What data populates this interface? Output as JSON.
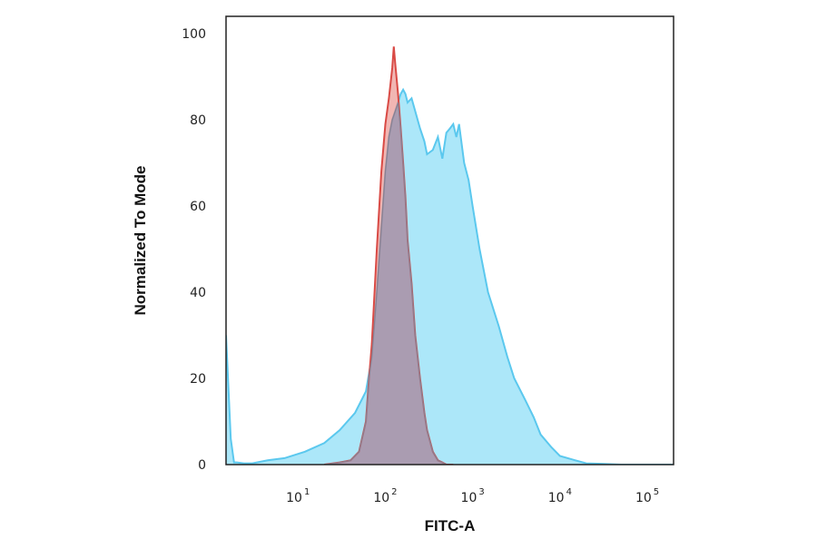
{
  "chart_data": {
    "type": "area",
    "title": "",
    "xlabel": "FITC-A",
    "ylabel": "Normalized To Mode",
    "xscale": "log",
    "xlim": [
      1.5,
      200000
    ],
    "ylim": [
      0,
      104
    ],
    "grid": false,
    "legend": "none",
    "x_ticks": [
      {
        "base": "10",
        "exp": "1",
        "value": 10
      },
      {
        "base": "10",
        "exp": "2",
        "value": 100
      },
      {
        "base": "10",
        "exp": "3",
        "value": 1000
      },
      {
        "base": "10",
        "exp": "4",
        "value": 10000
      },
      {
        "base": "10",
        "exp": "5",
        "value": 100000
      }
    ],
    "y_ticks": [
      {
        "label": "0",
        "value": 0
      },
      {
        "label": "20",
        "value": 20
      },
      {
        "label": "40",
        "value": 40
      },
      {
        "label": "60",
        "value": 60
      },
      {
        "label": "80",
        "value": 80
      },
      {
        "label": "100",
        "value": 100
      }
    ],
    "series": [
      {
        "color": "#5bc8ee",
        "fill": "#9ee3f8",
        "x": [
          1.5,
          1.7,
          1.85,
          2.0,
          2.4,
          3.0,
          4.5,
          7,
          12,
          20,
          30,
          45,
          60,
          70,
          80,
          90,
          100,
          110,
          120,
          130,
          140,
          150,
          160,
          170,
          180,
          200,
          220,
          250,
          280,
          300,
          350,
          400,
          450,
          500,
          550,
          600,
          650,
          700,
          800,
          900,
          1000,
          1200,
          1500,
          2000,
          2500,
          3000,
          4000,
          5000,
          6000,
          8000,
          10000,
          15000,
          20000,
          30000,
          50000,
          100000,
          200000
        ],
        "y": [
          30,
          6,
          0.5,
          0.5,
          0.3,
          0.3,
          1,
          1.5,
          3,
          5,
          8,
          12,
          17,
          25,
          40,
          55,
          68,
          76,
          80,
          82,
          84,
          86,
          87,
          86,
          84,
          85,
          82,
          78,
          75,
          72,
          73,
          76,
          71,
          77,
          78,
          79,
          76,
          79,
          70,
          66,
          60,
          50,
          40,
          32,
          25,
          20,
          15,
          11,
          7,
          4,
          2,
          1,
          0.3,
          0.2,
          0,
          0,
          0
        ]
      },
      {
        "color": "#d94a45",
        "fill": "#e88580",
        "x": [
          20,
          30,
          40,
          50,
          60,
          65,
          70,
          80,
          90,
          100,
          110,
          120,
          125,
          130,
          140,
          150,
          160,
          170,
          180,
          200,
          220,
          250,
          280,
          300,
          350,
          400,
          450,
          500,
          600
        ],
        "y": [
          0,
          0.5,
          1,
          3,
          10,
          20,
          28,
          50,
          68,
          79,
          85,
          92,
          97,
          93,
          86,
          78,
          70,
          62,
          52,
          42,
          30,
          20,
          12,
          8,
          3,
          1,
          0.5,
          0,
          0
        ]
      }
    ]
  }
}
